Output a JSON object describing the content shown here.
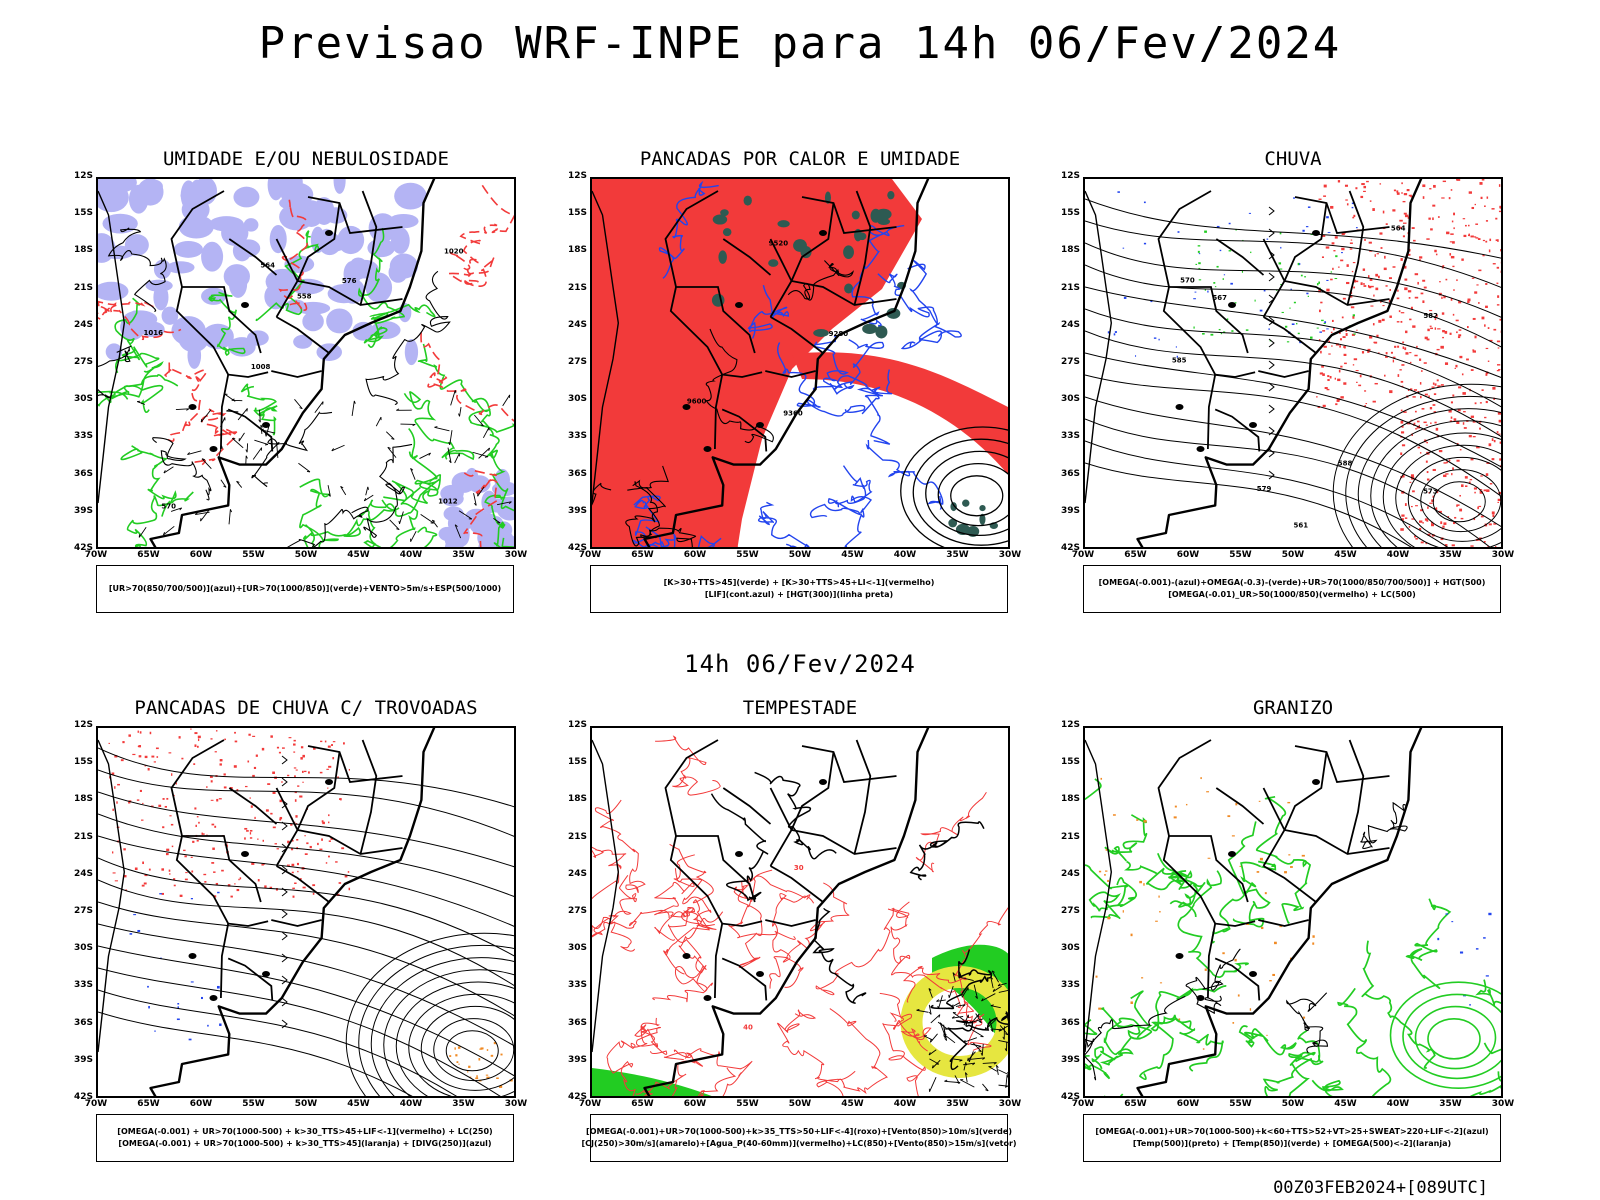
{
  "title": "Previsao WRF-INPE  para 14h 06/Fev/2024",
  "subtitle": "14h 06/Fev/2024",
  "footer": "00Z03FEB2024+[089UTC]",
  "lat_labels": [
    "12S",
    "15S",
    "18S",
    "21S",
    "24S",
    "27S",
    "30S",
    "33S",
    "36S",
    "39S",
    "42S"
  ],
  "lon_labels": [
    "70W",
    "65W",
    "60W",
    "55W",
    "50W",
    "45W",
    "40W",
    "35W",
    "30W"
  ],
  "colors": {
    "red": "#f23a3a",
    "green": "#22cc22",
    "blue": "#2244ee",
    "lavender": "#b4b4f4",
    "darkteal": "#2e5a52",
    "yellow": "#e6e640",
    "orange": "#f08a24"
  },
  "panels": [
    {
      "title": "UMIDADE E/OU NEBULOSIDADE",
      "legend": [
        "[UR>70(850/700/500)](azul)+[UR>70(1000/850)](verde)+VENTO>5m/s+ESP(500/1000)"
      ],
      "contour_labels": [
        "1012",
        "1016",
        "1020",
        "1008",
        "576",
        "570",
        "564",
        "558"
      ]
    },
    {
      "title": "PANCADAS POR CALOR E UMIDADE",
      "legend": [
        "[K>30+TTS>45](verde) + [K>30+TTS>45+LI<-1](vermelho)",
        "[LIF](cont.azul) + [HGT(300)](linha preta)"
      ],
      "contour_labels": [
        "9600",
        "9520",
        "9360",
        "9280"
      ]
    },
    {
      "title": "CHUVA",
      "legend": [
        "[OMEGA(-0.001)-(azul)+OMEGA(-0.3)-(verde)+UR>70(1000/850/700/500)] + HGT(500)",
        "[OMEGA(-0.01)_UR>50(1000/850)(vermelho) + LC(500)"
      ],
      "contour_labels": [
        "588",
        "585",
        "582",
        "579",
        "573",
        "570",
        "567",
        "564",
        "561"
      ]
    },
    {
      "title": "PANCADAS DE CHUVA C/ TROVOADAS",
      "legend": [
        "[OMEGA(-0.001) + UR>70(1000-500) + k>30_TTS>45+LIF<-1](vermelho) + LC(250)",
        "[OMEGA(-0.001) + UR>70(1000-500) + k>30_TTS>45](laranja) + [DIVG(250)](azul)"
      ],
      "contour_labels": []
    },
    {
      "title": "TEMPESTADE",
      "legend": [
        "[OMEGA(-0.001)+UR>70(1000-500)+k>35_TTS>50+LIF<-4](roxo)+[Vento(850)>10m/s](verde)",
        "[CJ(250)>30m/s](amarelo)+[Agua_P(40-60mm)](vermelho)+LC(850)+[Vento(850)>15m/s](vetor)"
      ],
      "contour_labels": [
        "40",
        "30"
      ]
    },
    {
      "title": "GRANIZO",
      "legend": [
        "[OMEGA(-0.001)+UR>70(1000-500)+k<60+TTS>52+VT>25+SWEAT>220+LIF<-2](azul)",
        "[Temp(500)](preto) + [Temp(850)](verde) + [OMEGA(500)<-2](laranja)"
      ],
      "contour_labels": []
    }
  ]
}
